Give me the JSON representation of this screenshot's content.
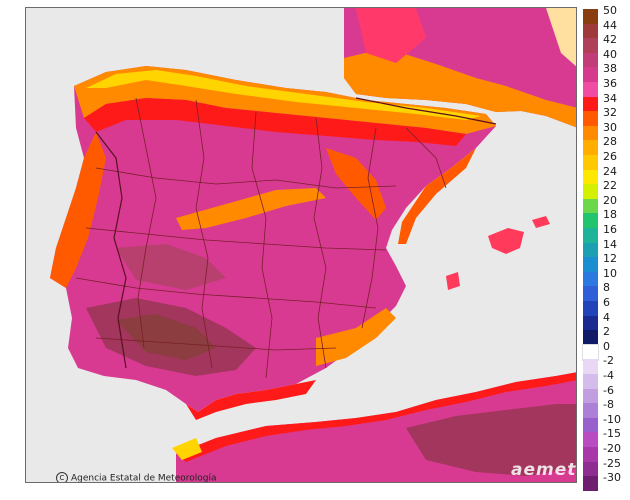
{
  "map": {
    "agency_label": "Agencia Estatal de Meteorología",
    "watermark": "aemet",
    "colors": {
      "background": "#e9e9e9",
      "sea": "#e9e9e9",
      "land_hot": "#d83a92",
      "land_very_hot": "#a2365c",
      "land_extreme": "#8b3d3f",
      "coast_red": "#ff1a1a",
      "orange": "#ff8a00",
      "yellow": "#ffd400",
      "border_lines": "#7a1f2a"
    }
  },
  "legend": {
    "ticks": [
      "50",
      "44",
      "42",
      "40",
      "38",
      "36",
      "34",
      "32",
      "30",
      "28",
      "26",
      "24",
      "22",
      "20",
      "18",
      "16",
      "14",
      "12",
      "10",
      "8",
      "6",
      "4",
      "2",
      "0",
      "-2",
      "-4",
      "-6",
      "-8",
      "-10",
      "-15",
      "-20",
      "-25",
      "-30"
    ],
    "colors": [
      "#8b3d12",
      "#9e3a3a",
      "#b0405a",
      "#c23c78",
      "#d63a8c",
      "#f04ca4",
      "#ff1a1a",
      "#ff5a00",
      "#ff8a00",
      "#ffae00",
      "#ffc800",
      "#ffe800",
      "#d2f000",
      "#6ad84a",
      "#22c46e",
      "#1fb49a",
      "#1aa0b0",
      "#1a8ed0",
      "#2a78e0",
      "#2f5fd8",
      "#2244b8",
      "#1a2a90",
      "#111a66",
      "#ffffff",
      "#e8d8f4",
      "#d4bceb",
      "#c09ee0",
      "#ac80d6",
      "#9860cc",
      "#b84cc0",
      "#a838a8",
      "#8e2e90",
      "#6e1e6e"
    ]
  }
}
